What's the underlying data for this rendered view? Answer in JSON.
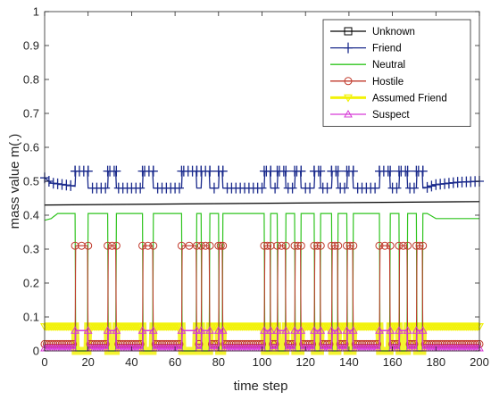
{
  "chart_data": {
    "type": "line",
    "title": "",
    "xlabel": "time step",
    "ylabel": "mass value m(.)",
    "xlim": [
      0,
      200
    ],
    "ylim": [
      0,
      1
    ],
    "grid": false,
    "legend_position": "top-right",
    "x_ticks": [
      "0",
      "20",
      "40",
      "60",
      "80",
      "100",
      "120",
      "140",
      "160",
      "180",
      "200"
    ],
    "y_ticks": [
      "0",
      "0.1",
      "0.2",
      "0.3",
      "0.4",
      "0.5",
      "0.6",
      "0.7",
      "0.8",
      "0.9",
      "1"
    ],
    "pulse_windows": [
      [
        14,
        20
      ],
      [
        29,
        33
      ],
      [
        45,
        50
      ],
      [
        63,
        70
      ],
      [
        72,
        76
      ],
      [
        80,
        82
      ],
      [
        101,
        104
      ],
      [
        107,
        111
      ],
      [
        115,
        118
      ],
      [
        124,
        127
      ],
      [
        132,
        135
      ],
      [
        139,
        142
      ],
      [
        154,
        159
      ],
      [
        163,
        167
      ],
      [
        171,
        174
      ]
    ],
    "series": [
      {
        "name": "Unknown",
        "color": "#000000",
        "marker": "square",
        "x": [
          0,
          200
        ],
        "values": [
          0.43,
          0.44
        ],
        "pulse_values": null
      },
      {
        "name": "Friend",
        "color": "#1a2a8c",
        "marker": "plus",
        "baseline_x": [
          0,
          3,
          20,
          175,
          180,
          190,
          200
        ],
        "baseline_values": [
          0.51,
          0.495,
          0.48,
          0.48,
          0.49,
          0.497,
          0.5
        ],
        "peak_value": 0.53
      },
      {
        "name": "Neutral",
        "color": "#2fc41e",
        "marker": "none",
        "baseline_x": [
          0,
          3,
          6,
          176,
          180,
          200
        ],
        "baseline_values": [
          0.385,
          0.39,
          0.405,
          0.405,
          0.39,
          0.39
        ],
        "dip_value": 0.0
      },
      {
        "name": "Hostile",
        "color": "#c0392b",
        "marker": "circle",
        "baseline_value": 0.02,
        "peak_value": 0.31
      },
      {
        "name": "Assumed Friend",
        "color": "#f2f20a",
        "marker": "triangle-down",
        "baseline_value": 0.072,
        "dip_value": 0.0
      },
      {
        "name": "Suspect",
        "color": "#d63ad6",
        "marker": "triangle-up",
        "baseline_value": 0.008,
        "peak_value": 0.06
      }
    ]
  }
}
